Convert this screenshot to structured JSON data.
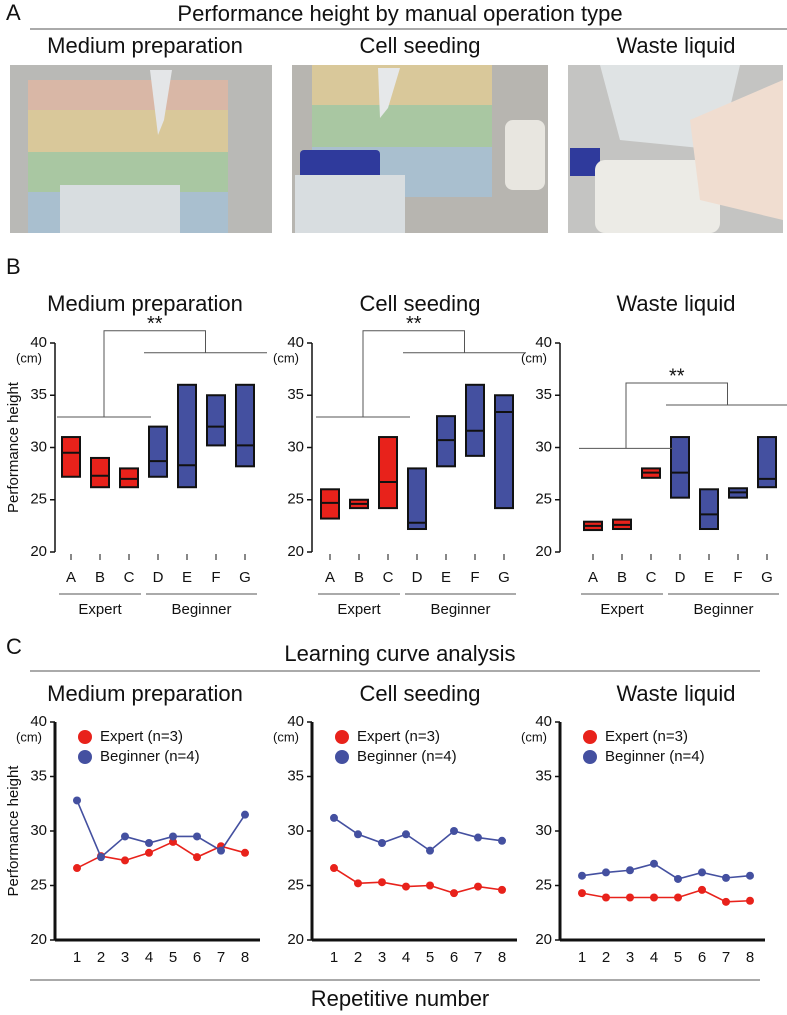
{
  "panel_labels": [
    "A",
    "B",
    "C"
  ],
  "panel_a": {
    "title": "Performance height by manual operation type",
    "photos": [
      "Medium preparation",
      "Cell seeding",
      "Waste liquid"
    ]
  },
  "panel_c": {
    "title": "Learning curve analysis",
    "xlabel": "Repetitive number"
  },
  "chart_data": [
    {
      "type": "box",
      "title": "Medium preparation",
      "ylabel": "Performance height",
      "yunit": "(cm)",
      "annotation": "**",
      "ylim": [
        20,
        40
      ],
      "yticks": [
        20,
        25,
        30,
        35,
        40
      ],
      "series": [
        {
          "name": "Expert",
          "color": "#e8221b",
          "categories": [
            "A",
            "B",
            "C"
          ],
          "low": [
            27.2,
            26.2,
            26.2
          ],
          "high": [
            31,
            29,
            28
          ],
          "median": [
            29.5,
            27.3,
            27
          ]
        },
        {
          "name": "Beginner",
          "color": "#4450a0",
          "categories": [
            "D",
            "E",
            "F",
            "G"
          ],
          "low": [
            27.2,
            26.2,
            30.2,
            28.2
          ],
          "high": [
            32,
            36,
            35,
            36
          ],
          "median": [
            28.7,
            28.3,
            32,
            30.2
          ]
        }
      ]
    },
    {
      "type": "box",
      "title": "Cell seeding",
      "yunit": "(cm)",
      "annotation": "**",
      "ylim": [
        20,
        40
      ],
      "yticks": [
        20,
        25,
        30,
        35,
        40
      ],
      "series": [
        {
          "name": "Expert",
          "color": "#e8221b",
          "categories": [
            "A",
            "B",
            "C"
          ],
          "low": [
            23.2,
            24.2,
            24.2
          ],
          "high": [
            26,
            25,
            31
          ],
          "median": [
            24.7,
            24.6,
            26.7
          ]
        },
        {
          "name": "Beginner",
          "color": "#4450a0",
          "categories": [
            "D",
            "E",
            "F",
            "G"
          ],
          "low": [
            22.2,
            28.2,
            29.2,
            24.2
          ],
          "high": [
            28,
            33,
            36,
            35
          ],
          "median": [
            22.8,
            30.7,
            31.6,
            33.4
          ]
        }
      ]
    },
    {
      "type": "box",
      "title": "Waste liquid",
      "yunit": "(cm)",
      "annotation": "**",
      "ylim": [
        20,
        40
      ],
      "yticks": [
        20,
        25,
        30,
        35,
        40
      ],
      "series": [
        {
          "name": "Expert",
          "color": "#e8221b",
          "categories": [
            "A",
            "B",
            "C"
          ],
          "low": [
            22.1,
            22.2,
            27.1
          ],
          "high": [
            22.9,
            23.1,
            28
          ],
          "median": [
            22.5,
            22.6,
            27.6
          ]
        },
        {
          "name": "Beginner",
          "color": "#4450a0",
          "categories": [
            "D",
            "E",
            "F",
            "G"
          ],
          "low": [
            25.2,
            22.2,
            25.2,
            26.2
          ],
          "high": [
            31,
            26,
            26.1,
            31
          ],
          "median": [
            27.6,
            23.6,
            25.7,
            27
          ]
        }
      ]
    },
    {
      "type": "line",
      "title": "Medium preparation",
      "ylabel": "Performance height",
      "yunit": "(cm)",
      "x": [
        1,
        2,
        3,
        4,
        5,
        6,
        7,
        8
      ],
      "ylim": [
        20,
        40
      ],
      "yticks": [
        20,
        25,
        30,
        35,
        40
      ],
      "xlim": [
        1,
        8
      ],
      "series": [
        {
          "name": "Expert (n=3)",
          "color": "#e8221b",
          "values": [
            26.6,
            27.7,
            27.3,
            28,
            29,
            27.6,
            28.6,
            28
          ]
        },
        {
          "name": "Beginner (n=4)",
          "color": "#4450a0",
          "values": [
            32.8,
            27.6,
            29.5,
            28.9,
            29.5,
            29.5,
            28.2,
            31.5
          ]
        }
      ]
    },
    {
      "type": "line",
      "title": "Cell seeding",
      "yunit": "(cm)",
      "x": [
        1,
        2,
        3,
        4,
        5,
        6,
        7,
        8
      ],
      "ylim": [
        20,
        40
      ],
      "yticks": [
        20,
        25,
        30,
        35,
        40
      ],
      "xlim": [
        1,
        8
      ],
      "series": [
        {
          "name": "Expert (n=3)",
          "color": "#e8221b",
          "values": [
            26.6,
            25.2,
            25.3,
            24.9,
            25,
            24.3,
            24.9,
            24.6
          ]
        },
        {
          "name": "Beginner (n=4)",
          "color": "#4450a0",
          "values": [
            31.2,
            29.7,
            28.9,
            29.7,
            28.2,
            30,
            29.4,
            29.1
          ]
        }
      ]
    },
    {
      "type": "line",
      "title": "Waste liquid",
      "yunit": "(cm)",
      "x": [
        1,
        2,
        3,
        4,
        5,
        6,
        7,
        8
      ],
      "ylim": [
        20,
        40
      ],
      "yticks": [
        20,
        25,
        30,
        35,
        40
      ],
      "xlim": [
        1,
        8
      ],
      "series": [
        {
          "name": "Expert (n=3)",
          "color": "#e8221b",
          "values": [
            24.3,
            23.9,
            23.9,
            23.9,
            23.9,
            24.6,
            23.5,
            23.6
          ]
        },
        {
          "name": "Beginner (n=4)",
          "color": "#4450a0",
          "values": [
            25.9,
            26.2,
            26.4,
            27,
            25.6,
            26.2,
            25.7,
            25.9
          ]
        }
      ]
    }
  ]
}
